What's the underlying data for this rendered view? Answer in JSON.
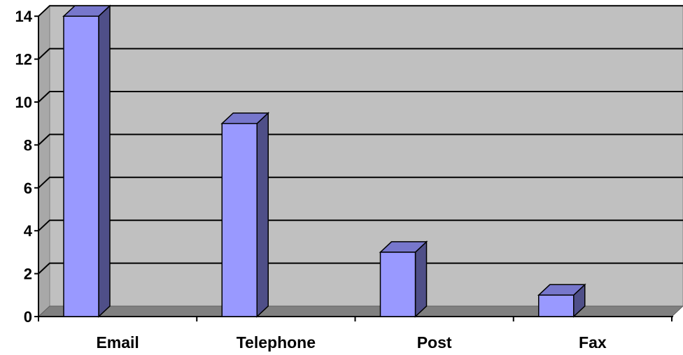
{
  "chart_data": {
    "type": "bar",
    "categories": [
      "Email",
      "Telephone",
      "Post",
      "Fax"
    ],
    "values": [
      14,
      9,
      3,
      1
    ],
    "title": "",
    "xlabel": "",
    "ylabel": "",
    "ylim": [
      0,
      14
    ],
    "yticks": [
      "0",
      "2",
      "4",
      "6",
      "8",
      "10",
      "12",
      "14"
    ],
    "grid": true,
    "legend": "none",
    "style": "3d-column",
    "colors": {
      "bar_front": "#9999ff",
      "bar_top": "#7777cc",
      "bar_side": "#4f4f88",
      "plot_wall": "#c0c0c0",
      "floor": "#808080",
      "gridline": "#000000"
    }
  }
}
